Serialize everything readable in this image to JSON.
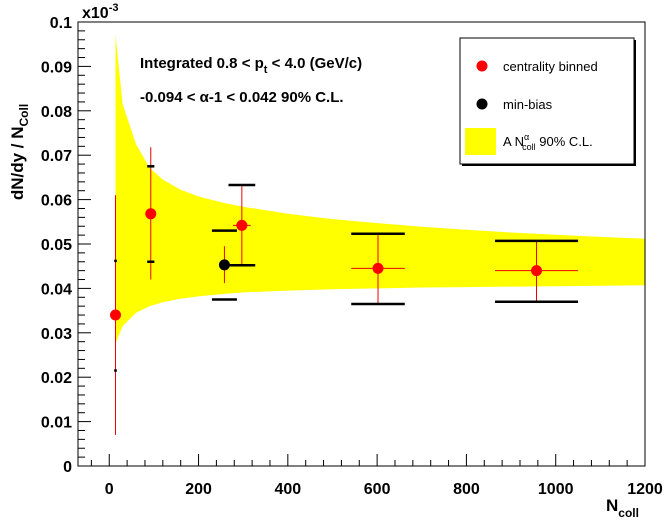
{
  "chart_data": {
    "type": "scatter",
    "xlabel": "N",
    "xlabel_sub": "coll",
    "ylabel": "dN/dy / N",
    "ylabel_sub": "Coll",
    "y_multiplier": "x10",
    "y_multiplier_exp": "-3",
    "xlim": [
      -70,
      1200
    ],
    "ylim": [
      0,
      0.1
    ],
    "x_ticks": [
      0,
      200,
      400,
      600,
      800,
      1000,
      1200
    ],
    "x_tick_labels": [
      "0",
      "200",
      "400",
      "600",
      "800",
      "1000",
      "1200"
    ],
    "y_ticks": [
      0,
      0.01,
      0.02,
      0.03,
      0.04,
      0.05,
      0.06,
      0.07,
      0.08,
      0.09,
      0.1
    ],
    "y_tick_labels": [
      "0",
      "0.01",
      "0.02",
      "0.03",
      "0.04",
      "0.05",
      "0.06",
      "0.07",
      "0.08",
      "0.09",
      "0.1"
    ],
    "grid": false,
    "legend_position": "top-right",
    "annotations": {
      "line1_pre": "Integrated 0.8 < p",
      "line1_sub": "t",
      "line1_post": " < 4.0 (GeV/c)",
      "line2_pre": "-0.094 < ",
      "line2_alpha": "α",
      "line2_post": "-1 < 0.042  90% C.L."
    },
    "legend": {
      "centrality": "centrality binned",
      "minbias": "min-bias",
      "band_pre": "A N",
      "band_sup": "α",
      "band_sub": "coll",
      "band_post": " 90% C.L."
    },
    "band": {
      "x": [
        14,
        30,
        60,
        90,
        120,
        160,
        200,
        260,
        300,
        400,
        500,
        600,
        700,
        800,
        900,
        1000,
        1100,
        1200
      ],
      "upper": [
        0.097,
        0.0815,
        0.0725,
        0.0672,
        0.0645,
        0.0622,
        0.0607,
        0.0592,
        0.0584,
        0.0568,
        0.0556,
        0.0547,
        0.0539,
        0.0532,
        0.0526,
        0.0521,
        0.0516,
        0.0512
      ],
      "lower": [
        0.0275,
        0.0315,
        0.0345,
        0.036,
        0.0369,
        0.0377,
        0.0382,
        0.0388,
        0.0391,
        0.0395,
        0.0398,
        0.04,
        0.0402,
        0.0403,
        0.0404,
        0.0405,
        0.0406,
        0.0407
      ],
      "color": "#ffff00"
    },
    "series": [
      {
        "name": "centrality binned",
        "color": "#ff0000",
        "err_color": "#ee0000",
        "points": [
          {
            "x": 14,
            "y": 0.034,
            "ylo": 0.007,
            "yhi": 0.061,
            "xerr": 0,
            "syslo": 0.0215,
            "syshi": 0.0462,
            "syshw": 3
          },
          {
            "x": 93,
            "y": 0.0568,
            "ylo": 0.042,
            "yhi": 0.0718,
            "xerr": 0,
            "syslo": 0.046,
            "syshi": 0.0675,
            "syshw": 8
          },
          {
            "x": 297,
            "y": 0.0542,
            "ylo": 0.0455,
            "yhi": 0.063,
            "xerr": 20,
            "syslo": 0.0452,
            "syshi": 0.0633,
            "syshw": 30
          },
          {
            "x": 602,
            "y": 0.0445,
            "ylo": 0.0365,
            "yhi": 0.0525,
            "xerr": 60,
            "syslo": 0.0365,
            "syshi": 0.0523,
            "syshw": 60
          },
          {
            "x": 957,
            "y": 0.044,
            "ylo": 0.037,
            "yhi": 0.0505,
            "xerr": 93,
            "syslo": 0.037,
            "syshi": 0.0507,
            "syshw": 93
          }
        ]
      },
      {
        "name": "min-bias",
        "color": "#000000",
        "err_color": "#ee0000",
        "points": [
          {
            "x": 258,
            "y": 0.0453,
            "ylo": 0.0412,
            "yhi": 0.0495,
            "xerr": 0,
            "syslo": 0.0375,
            "syshi": 0.053,
            "syshw": 28
          }
        ]
      }
    ]
  }
}
